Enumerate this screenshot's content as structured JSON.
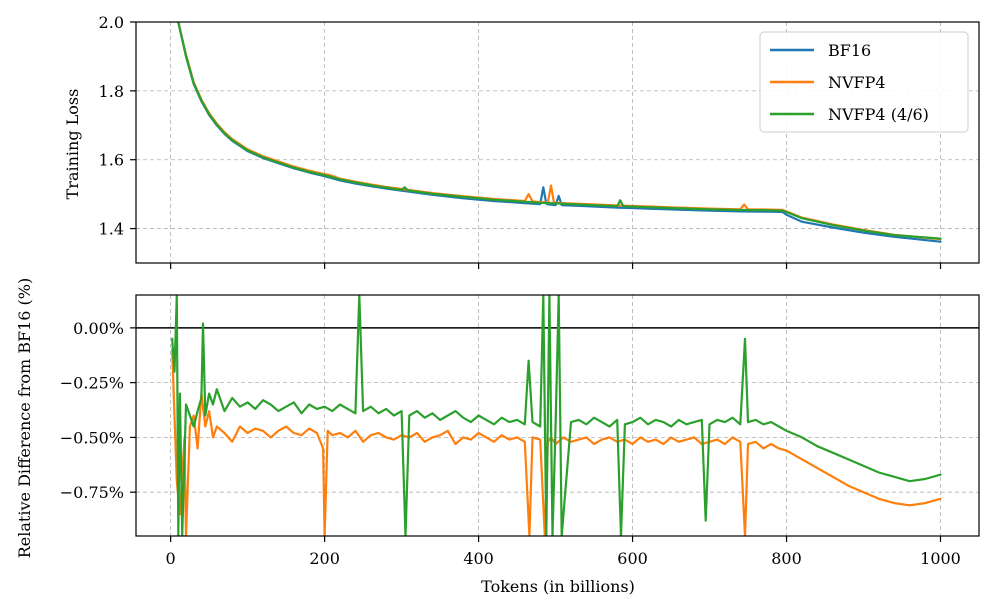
{
  "chart_data": [
    {
      "type": "line",
      "ylabel": "Training Loss",
      "xlim": [
        -45,
        1050
      ],
      "ylim": [
        1.3,
        2.0
      ],
      "yticks": [
        1.4,
        1.6,
        1.8,
        2.0
      ],
      "ytick_labels": [
        "1.4",
        "1.6",
        "1.8",
        "2.0"
      ],
      "xticks": [
        0,
        200,
        400,
        600,
        800,
        1000
      ],
      "grid": true,
      "legend": "top-right",
      "series": [
        {
          "name": "BF16",
          "color": "#1f77b4",
          "x": [
            10,
            20,
            30,
            40,
            50,
            60,
            70,
            80,
            90,
            100,
            120,
            140,
            160,
            180,
            200,
            220,
            240,
            260,
            280,
            300,
            340,
            380,
            420,
            460,
            480,
            484,
            488,
            492,
            500,
            504,
            508,
            540,
            580,
            620,
            660,
            700,
            740,
            780,
            795,
            800,
            820,
            860,
            900,
            940,
            1000
          ],
          "y": [
            2.0,
            1.9,
            1.82,
            1.77,
            1.73,
            1.7,
            1.675,
            1.655,
            1.64,
            1.625,
            1.605,
            1.59,
            1.575,
            1.563,
            1.552,
            1.54,
            1.531,
            1.523,
            1.516,
            1.51,
            1.498,
            1.488,
            1.48,
            1.474,
            1.471,
            1.52,
            1.472,
            1.47,
            1.468,
            1.495,
            1.468,
            1.465,
            1.461,
            1.458,
            1.455,
            1.452,
            1.45,
            1.449,
            1.448,
            1.44,
            1.42,
            1.403,
            1.388,
            1.376,
            1.362
          ]
        },
        {
          "name": "NVFP4",
          "color": "#ff7f0e",
          "x": [
            10,
            20,
            30,
            40,
            50,
            60,
            70,
            80,
            90,
            100,
            120,
            140,
            160,
            180,
            200,
            202,
            206,
            220,
            240,
            260,
            280,
            300,
            340,
            380,
            420,
            460,
            465,
            470,
            480,
            490,
            494,
            498,
            540,
            580,
            620,
            660,
            700,
            740,
            745,
            750,
            780,
            795,
            800,
            820,
            860,
            900,
            940,
            1000
          ],
          "y": [
            2.0,
            1.905,
            1.825,
            1.775,
            1.735,
            1.705,
            1.68,
            1.66,
            1.645,
            1.63,
            1.61,
            1.595,
            1.58,
            1.568,
            1.558,
            1.557,
            1.556,
            1.545,
            1.536,
            1.528,
            1.521,
            1.515,
            1.503,
            1.494,
            1.486,
            1.48,
            1.5,
            1.479,
            1.477,
            1.476,
            1.525,
            1.475,
            1.471,
            1.467,
            1.464,
            1.461,
            1.458,
            1.456,
            1.47,
            1.456,
            1.455,
            1.454,
            1.45,
            1.432,
            1.412,
            1.396,
            1.382,
            1.369
          ]
        },
        {
          "name": "NVFP4 (4/6)",
          "color": "#2ca02c",
          "x": [
            10,
            20,
            30,
            40,
            50,
            60,
            70,
            80,
            90,
            100,
            120,
            140,
            160,
            180,
            200,
            220,
            240,
            260,
            280,
            300,
            304,
            308,
            340,
            380,
            420,
            460,
            480,
            500,
            540,
            580,
            584,
            588,
            620,
            660,
            700,
            740,
            780,
            795,
            800,
            820,
            860,
            900,
            940,
            1000
          ],
          "y": [
            2.0,
            1.902,
            1.822,
            1.772,
            1.732,
            1.702,
            1.677,
            1.657,
            1.642,
            1.627,
            1.607,
            1.592,
            1.577,
            1.565,
            1.555,
            1.543,
            1.534,
            1.526,
            1.519,
            1.512,
            1.52,
            1.511,
            1.501,
            1.492,
            1.484,
            1.478,
            1.475,
            1.473,
            1.469,
            1.465,
            1.482,
            1.465,
            1.462,
            1.459,
            1.456,
            1.454,
            1.453,
            1.452,
            1.448,
            1.43,
            1.41,
            1.394,
            1.381,
            1.371
          ]
        }
      ]
    },
    {
      "type": "line",
      "xlabel": "Tokens (in billions)",
      "ylabel": "Relative Difference from BF16 (%)",
      "xlim": [
        -45,
        1050
      ],
      "ylim": [
        -0.95,
        0.15
      ],
      "yticks": [
        0.0,
        -0.25,
        -0.5,
        -0.75
      ],
      "ytick_labels": [
        "0.00%",
        "−0.25%",
        "−0.50%",
        "−0.75%"
      ],
      "xticks": [
        0,
        200,
        400,
        600,
        800,
        1000
      ],
      "xtick_labels": [
        "0",
        "200",
        "400",
        "600",
        "800",
        "1000"
      ],
      "reference_line_y": 0.0,
      "grid": true,
      "series": [
        {
          "name": "NVFP4",
          "color": "#ff7f0e",
          "x": [
            2,
            5,
            8,
            12,
            18,
            20,
            25,
            30,
            35,
            40,
            45,
            50,
            55,
            60,
            70,
            80,
            90,
            100,
            110,
            120,
            130,
            140,
            150,
            160,
            170,
            180,
            190,
            198,
            200,
            204,
            210,
            220,
            230,
            240,
            250,
            260,
            270,
            280,
            290,
            300,
            310,
            320,
            330,
            340,
            350,
            360,
            370,
            380,
            390,
            400,
            410,
            420,
            430,
            440,
            450,
            460,
            466,
            470,
            480,
            486,
            490,
            494,
            500,
            510,
            520,
            530,
            540,
            550,
            560,
            570,
            580,
            590,
            600,
            610,
            620,
            630,
            640,
            650,
            660,
            670,
            680,
            690,
            700,
            710,
            720,
            730,
            740,
            746,
            750,
            760,
            770,
            780,
            790,
            800,
            820,
            840,
            860,
            880,
            900,
            920,
            940,
            960,
            980,
            1000
          ],
          "y": [
            -0.1,
            -0.4,
            -0.7,
            -0.85,
            -0.5,
            -0.95,
            -0.45,
            -0.4,
            -0.55,
            -0.3,
            -0.45,
            -0.38,
            -0.5,
            -0.45,
            -0.48,
            -0.52,
            -0.45,
            -0.48,
            -0.46,
            -0.47,
            -0.5,
            -0.47,
            -0.45,
            -0.48,
            -0.49,
            -0.46,
            -0.48,
            -0.55,
            -0.95,
            -0.47,
            -0.49,
            -0.48,
            -0.5,
            -0.47,
            -0.52,
            -0.49,
            -0.48,
            -0.5,
            -0.51,
            -0.49,
            -0.5,
            -0.48,
            -0.52,
            -0.5,
            -0.49,
            -0.47,
            -0.53,
            -0.5,
            -0.51,
            -0.48,
            -0.5,
            -0.52,
            -0.49,
            -0.51,
            -0.5,
            -0.52,
            -0.95,
            -0.5,
            -0.51,
            -0.95,
            -0.52,
            -0.5,
            -0.53,
            -0.5,
            -0.52,
            -0.51,
            -0.5,
            -0.53,
            -0.51,
            -0.5,
            -0.52,
            -0.51,
            -0.53,
            -0.5,
            -0.52,
            -0.51,
            -0.53,
            -0.5,
            -0.52,
            -0.51,
            -0.5,
            -0.53,
            -0.52,
            -0.51,
            -0.53,
            -0.5,
            -0.52,
            -0.95,
            -0.53,
            -0.52,
            -0.55,
            -0.53,
            -0.55,
            -0.56,
            -0.6,
            -0.64,
            -0.68,
            -0.72,
            -0.75,
            -0.78,
            -0.8,
            -0.81,
            -0.8,
            -0.78
          ]
        },
        {
          "name": "NVFP4 (4/6)",
          "color": "#2ca02c",
          "x": [
            2,
            5,
            8,
            10,
            12,
            15,
            20,
            25,
            30,
            35,
            40,
            42,
            45,
            50,
            55,
            60,
            70,
            80,
            90,
            100,
            110,
            120,
            130,
            140,
            150,
            160,
            170,
            180,
            190,
            200,
            210,
            220,
            230,
            240,
            245,
            250,
            260,
            270,
            280,
            290,
            300,
            305,
            310,
            320,
            330,
            340,
            350,
            360,
            370,
            380,
            390,
            400,
            410,
            420,
            430,
            440,
            450,
            460,
            465,
            470,
            480,
            484,
            488,
            492,
            496,
            500,
            504,
            508,
            520,
            530,
            540,
            550,
            560,
            570,
            580,
            585,
            590,
            600,
            610,
            620,
            630,
            640,
            650,
            660,
            670,
            680,
            690,
            695,
            700,
            710,
            720,
            730,
            740,
            746,
            750,
            760,
            770,
            780,
            790,
            800,
            820,
            840,
            860,
            880,
            900,
            920,
            940,
            960,
            980,
            1000
          ],
          "y": [
            -0.05,
            -0.2,
            0.15,
            -0.95,
            -0.3,
            -0.95,
            -0.35,
            -0.4,
            -0.45,
            -0.38,
            -0.32,
            0.02,
            -0.4,
            -0.3,
            -0.35,
            -0.28,
            -0.38,
            -0.32,
            -0.36,
            -0.34,
            -0.37,
            -0.33,
            -0.35,
            -0.38,
            -0.36,
            -0.34,
            -0.39,
            -0.35,
            -0.37,
            -0.36,
            -0.38,
            -0.35,
            -0.37,
            -0.39,
            0.15,
            -0.38,
            -0.36,
            -0.39,
            -0.37,
            -0.4,
            -0.38,
            -0.95,
            -0.4,
            -0.38,
            -0.41,
            -0.39,
            -0.42,
            -0.4,
            -0.38,
            -0.41,
            -0.43,
            -0.4,
            -0.42,
            -0.44,
            -0.41,
            -0.43,
            -0.42,
            -0.44,
            -0.15,
            -0.43,
            -0.45,
            0.15,
            -0.95,
            0.15,
            -0.95,
            -0.44,
            0.15,
            -0.95,
            -0.43,
            -0.42,
            -0.44,
            -0.41,
            -0.43,
            -0.45,
            -0.42,
            -0.95,
            -0.44,
            -0.43,
            -0.41,
            -0.44,
            -0.42,
            -0.43,
            -0.45,
            -0.42,
            -0.44,
            -0.43,
            -0.42,
            -0.88,
            -0.44,
            -0.42,
            -0.43,
            -0.41,
            -0.44,
            -0.05,
            -0.43,
            -0.42,
            -0.44,
            -0.43,
            -0.45,
            -0.47,
            -0.5,
            -0.54,
            -0.57,
            -0.6,
            -0.63,
            -0.66,
            -0.68,
            -0.7,
            -0.69,
            -0.67
          ]
        }
      ]
    }
  ]
}
